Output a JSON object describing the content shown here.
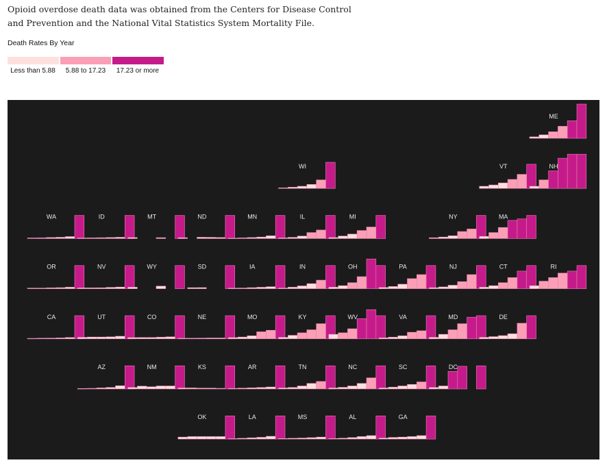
{
  "source_note": "Opioid overdose death data was obtained from the Centers for Disease Control and Prevention and the National Vital Statistics System Mortality File.",
  "legend": {
    "title": "Death Rates By Year",
    "items": [
      {
        "label": "Less than 5.88",
        "color": "#fde0dd"
      },
      {
        "label": "5.88 to 17.23",
        "color": "#fa9fb5"
      },
      {
        "label": "17.23 or more",
        "color": "#c51b8a"
      }
    ]
  },
  "chart_data": {
    "type": "bar",
    "layout": "tile-grid small multiples",
    "thresholds": [
      5.88,
      17.23
    ],
    "background": "#1b1b1b",
    "bar_stroke": "#e87fb4",
    "ymax": 34,
    "states": [
      {
        "name": "ME",
        "row": 0,
        "col": 10,
        "values": [
          1.5,
          3.5,
          6.5,
          12,
          17.5,
          34
        ]
      },
      {
        "name": "WI",
        "row": 1,
        "col": 5,
        "values": [
          0.6,
          1.2,
          2.2,
          4,
          8.5,
          26
        ]
      },
      {
        "name": "VT",
        "row": 1,
        "col": 9,
        "values": [
          2.2,
          3.5,
          5.5,
          9,
          14,
          24
        ]
      },
      {
        "name": "NH",
        "row": 1,
        "col": 10,
        "values": [
          2.2,
          8.5,
          17.5,
          30,
          35,
          35
        ]
      },
      {
        "name": "WA",
        "row": 2,
        "col": 0,
        "values": [
          0.6,
          0.7,
          1,
          1.3,
          2,
          23
        ]
      },
      {
        "name": "ID",
        "row": 2,
        "col": 1,
        "values": [
          0.6,
          0.7,
          0.8,
          1,
          1.3,
          23
        ]
      },
      {
        "name": "MT",
        "row": 2,
        "col": 2,
        "values": [
          1,
          0,
          0,
          0.9,
          0,
          23
        ]
      },
      {
        "name": "ND",
        "row": 2,
        "col": 3,
        "values": [
          0.9,
          0,
          1.3,
          1.2,
          1,
          23
        ]
      },
      {
        "name": "MN",
        "row": 2,
        "col": 4,
        "values": [
          0.5,
          0.7,
          1,
          1.5,
          2.8,
          23
        ]
      },
      {
        "name": "IL",
        "row": 2,
        "col": 5,
        "values": [
          0.7,
          1.2,
          2.5,
          6,
          8.5,
          23
        ]
      },
      {
        "name": "MI",
        "row": 2,
        "col": 6,
        "values": [
          1,
          2.5,
          4.5,
          8,
          11.5,
          23
        ]
      },
      {
        "name": "NY",
        "row": 2,
        "col": 8,
        "values": [
          0.8,
          1.5,
          2.8,
          7,
          9.5,
          23
        ]
      },
      {
        "name": "MA",
        "row": 2,
        "col": 9,
        "values": [
          2.2,
          6,
          11,
          18,
          19.5,
          23
        ]
      },
      {
        "name": "OR",
        "row": 3,
        "col": 0,
        "values": [
          0.6,
          0.6,
          0.8,
          1,
          1.5,
          23
        ]
      },
      {
        "name": "NV",
        "row": 3,
        "col": 1,
        "values": [
          0.8,
          0.8,
          0.9,
          1.3,
          1.6,
          23
        ]
      },
      {
        "name": "WY",
        "row": 3,
        "col": 2,
        "values": [
          1.5,
          0,
          0,
          2.6,
          0,
          23
        ]
      },
      {
        "name": "SD",
        "row": 3,
        "col": 3,
        "values": [
          0,
          1,
          1.1,
          0,
          0,
          23
        ]
      },
      {
        "name": "IA",
        "row": 3,
        "col": 4,
        "values": [
          0.6,
          0.7,
          1,
          1.4,
          2,
          23
        ]
      },
      {
        "name": "IN",
        "row": 3,
        "col": 5,
        "values": [
          0.7,
          1.5,
          2.8,
          5,
          8.5,
          23
        ]
      },
      {
        "name": "OH",
        "row": 3,
        "col": 6,
        "values": [
          1.5,
          3,
          6,
          12,
          29.5,
          23
        ]
      },
      {
        "name": "PA",
        "row": 3,
        "col": 7,
        "values": [
          1.2,
          2.2,
          4.5,
          10,
          14,
          23
        ]
      },
      {
        "name": "NJ",
        "row": 3,
        "col": 8,
        "values": [
          1,
          1.8,
          3.5,
          7,
          14,
          23
        ]
      },
      {
        "name": "CT",
        "row": 3,
        "col": 9,
        "values": [
          1.5,
          3,
          6,
          11,
          17.5,
          23
        ]
      },
      {
        "name": "RI",
        "row": 3,
        "col": 10,
        "values": [
          3,
          7.5,
          11,
          15.5,
          17.5,
          23
        ]
      },
      {
        "name": "CA",
        "row": 4,
        "col": 0,
        "values": [
          0.5,
          0.6,
          0.7,
          0.9,
          1.3,
          23
        ]
      },
      {
        "name": "UT",
        "row": 4,
        "col": 1,
        "values": [
          1.5,
          1.8,
          1.8,
          2,
          2.6,
          23
        ]
      },
      {
        "name": "CO",
        "row": 4,
        "col": 2,
        "values": [
          1.2,
          1.3,
          1.3,
          1.6,
          2,
          23
        ]
      },
      {
        "name": "NE",
        "row": 4,
        "col": 3,
        "values": [
          0.6,
          0.6,
          0.7,
          0.8,
          0.8,
          23
        ]
      },
      {
        "name": "MO",
        "row": 4,
        "col": 4,
        "values": [
          1.2,
          1.8,
          3,
          7,
          8.5,
          23
        ]
      },
      {
        "name": "KY",
        "row": 4,
        "col": 5,
        "values": [
          1.5,
          3.5,
          6,
          9,
          15,
          23
        ]
      },
      {
        "name": "WV",
        "row": 4,
        "col": 6,
        "values": [
          4.5,
          6,
          10,
          20,
          29,
          23
        ]
      },
      {
        "name": "VA",
        "row": 4,
        "col": 7,
        "values": [
          1,
          1.6,
          3,
          6.5,
          8,
          23
        ]
      },
      {
        "name": "MD",
        "row": 4,
        "col": 8,
        "values": [
          1.5,
          4.5,
          9,
          15,
          21.5,
          23
        ]
      },
      {
        "name": "DE",
        "row": 4,
        "col": 9,
        "values": [
          1.5,
          2.2,
          3.2,
          5,
          15.5,
          23
        ]
      },
      {
        "name": "AZ",
        "row": 5,
        "col": 1,
        "values": [
          0.5,
          0.6,
          1,
          1.5,
          3.2,
          23
        ]
      },
      {
        "name": "NM",
        "row": 5,
        "col": 2,
        "values": [
          1.5,
          2.8,
          2.2,
          3,
          3,
          23
        ]
      },
      {
        "name": "KS",
        "row": 5,
        "col": 3,
        "values": [
          1,
          1,
          0.8,
          0.8,
          0.6,
          23
        ]
      },
      {
        "name": "AR",
        "row": 5,
        "col": 4,
        "values": [
          0.6,
          0.8,
          1.1,
          1.4,
          2,
          23
        ]
      },
      {
        "name": "TN",
        "row": 5,
        "col": 5,
        "values": [
          1,
          1.5,
          3,
          5.5,
          7.5,
          23
        ]
      },
      {
        "name": "NC",
        "row": 5,
        "col": 6,
        "values": [
          1,
          1.6,
          3,
          5.5,
          11,
          23
        ]
      },
      {
        "name": "SC",
        "row": 5,
        "col": 7,
        "values": [
          1,
          1.8,
          3,
          4.5,
          7,
          23
        ]
      },
      {
        "name": "DC",
        "row": 5,
        "col": 8,
        "values": [
          1.5,
          3,
          17.5,
          22.5,
          0,
          23
        ]
      },
      {
        "name": "OK",
        "row": 6,
        "col": 3,
        "values": [
          2,
          2.5,
          2.5,
          2.5,
          2.5,
          23
        ]
      },
      {
        "name": "LA",
        "row": 6,
        "col": 4,
        "values": [
          0.5,
          0.8,
          1.2,
          1.8,
          2.8,
          23
        ]
      },
      {
        "name": "MS",
        "row": 6,
        "col": 5,
        "values": [
          0.6,
          0.8,
          1,
          1.4,
          2,
          23
        ]
      },
      {
        "name": "AL",
        "row": 6,
        "col": 6,
        "values": [
          0.6,
          0.9,
          1.5,
          2.5,
          3.5,
          23
        ]
      },
      {
        "name": "GA",
        "row": 6,
        "col": 7,
        "values": [
          1,
          1.6,
          2,
          2.5,
          3.5,
          23
        ]
      }
    ]
  }
}
